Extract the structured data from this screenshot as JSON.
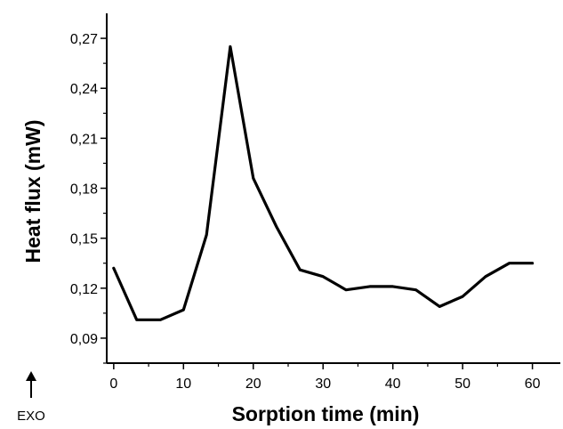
{
  "chart_data": {
    "type": "line",
    "title": "",
    "xlabel": "Sorption time (min)",
    "ylabel": "Heat flux (mW)",
    "xlim": [
      -1,
      64
    ],
    "ylim": [
      0.075,
      0.285
    ],
    "x_ticks": [
      0,
      10,
      20,
      30,
      40,
      50,
      60
    ],
    "y_ticks": [
      0.09,
      0.12,
      0.15,
      0.18,
      0.21,
      0.24,
      0.27
    ],
    "y_tick_labels": [
      "0,09",
      "0,12",
      "0,15",
      "0,18",
      "0,21",
      "0,24",
      "0,27"
    ],
    "x_tick_labels": [
      "0",
      "10",
      "20",
      "30",
      "40",
      "50",
      "60"
    ],
    "grid": false,
    "legend": "none",
    "annotation": "EXO",
    "line_color": "#000000",
    "series": [
      {
        "x": [
          0,
          3.3,
          6.7,
          10,
          13.3,
          16.7,
          20,
          23.3,
          26.7,
          30,
          33.3,
          36.7,
          40,
          43.3,
          46.7,
          50,
          53.3,
          56.7,
          60
        ],
        "values": [
          0.132,
          0.101,
          0.101,
          0.107,
          0.152,
          0.265,
          0.186,
          0.157,
          0.131,
          0.127,
          0.119,
          0.121,
          0.121,
          0.119,
          0.109,
          0.115,
          0.127,
          0.135,
          0.135
        ]
      }
    ]
  }
}
